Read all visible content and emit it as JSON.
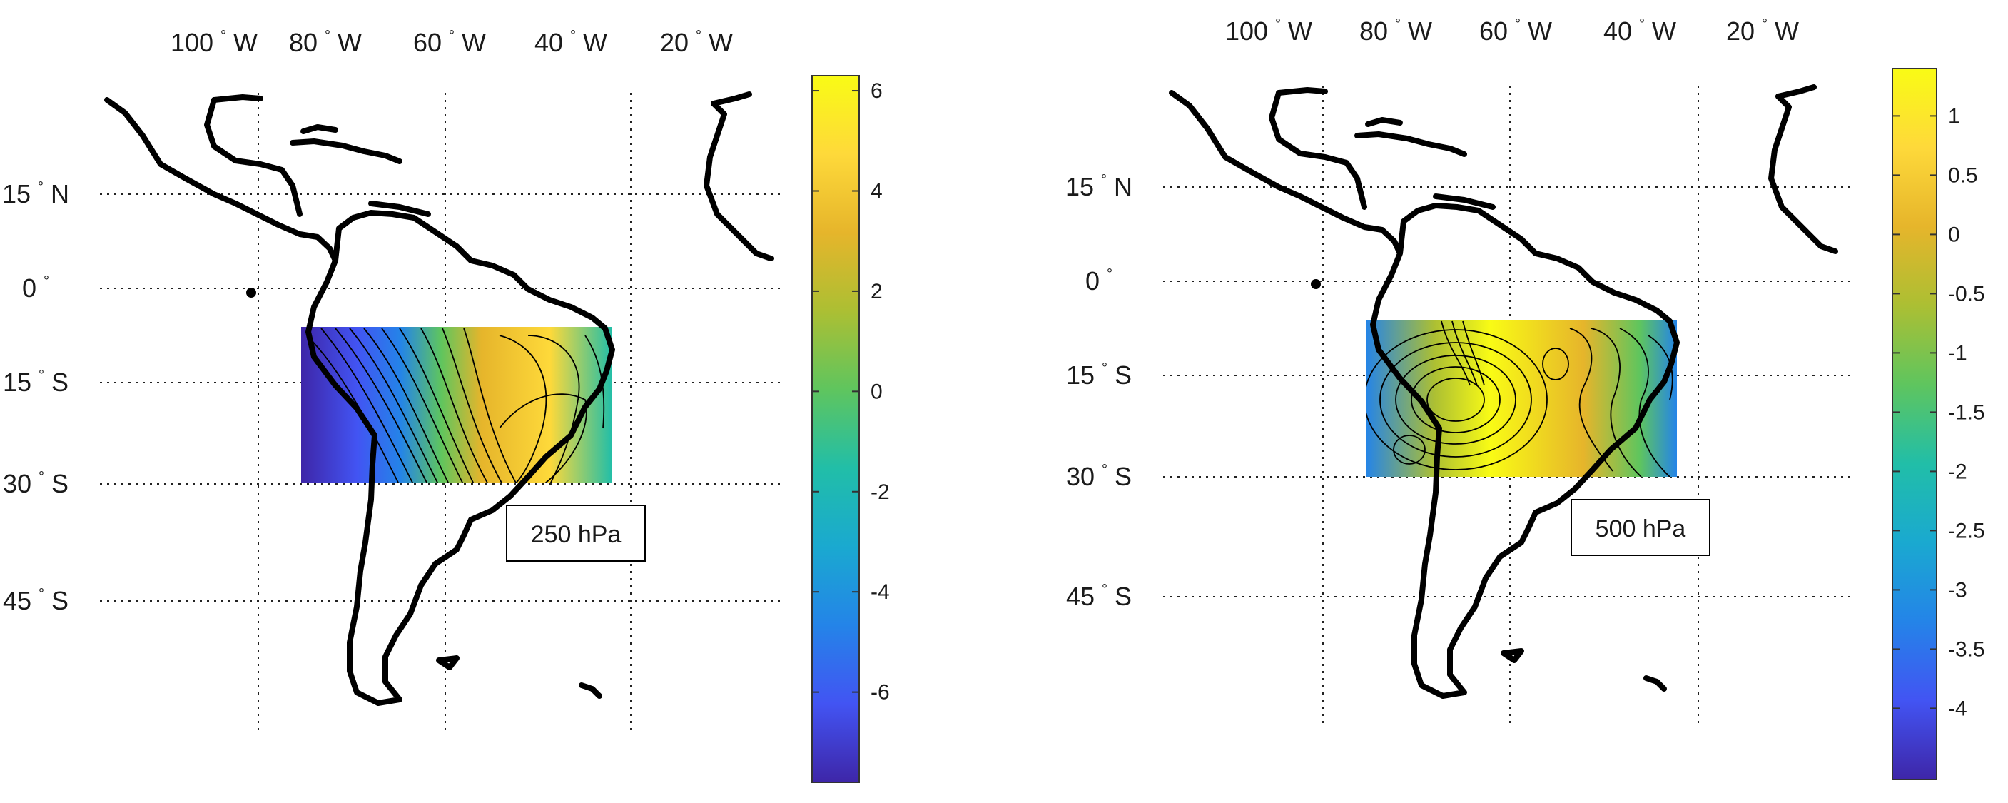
{
  "panels": [
    {
      "id": "left",
      "label": "250 hPa",
      "lon_ticks": [
        "100",
        "80",
        "60",
        "40",
        "20"
      ],
      "lon_hemi": "W",
      "lat_ticks": [
        {
          "value": "15",
          "hemi": "N"
        },
        {
          "value": "0",
          "hemi": ""
        },
        {
          "value": "15",
          "hemi": "S"
        },
        {
          "value": "30",
          "hemi": "S"
        },
        {
          "value": "45",
          "hemi": "S"
        }
      ],
      "colorbar": {
        "min": -7.8,
        "max": 6.3,
        "ticks": [
          "6",
          "4",
          "2",
          "0",
          "-2",
          "-4",
          "-6"
        ],
        "tick_values": [
          6,
          4,
          2,
          0,
          -2,
          -4,
          -6
        ]
      }
    },
    {
      "id": "right",
      "label": "500 hPa",
      "lon_ticks": [
        "100",
        "80",
        "60",
        "40",
        "20"
      ],
      "lon_hemi": "W",
      "lat_ticks": [
        {
          "value": "15",
          "hemi": "N"
        },
        {
          "value": "0",
          "hemi": ""
        },
        {
          "value": "15",
          "hemi": "S"
        },
        {
          "value": "30",
          "hemi": "S"
        },
        {
          "value": "45",
          "hemi": "S"
        }
      ],
      "colorbar": {
        "min": -4.6,
        "max": 1.4,
        "ticks": [
          "1",
          "0.5",
          "0",
          "-0.5",
          "-1",
          "-1.5",
          "-2",
          "-2.5",
          "-3",
          "-3.5",
          "-4"
        ],
        "tick_values": [
          1,
          0.5,
          0,
          -0.5,
          -1,
          -1.5,
          -2,
          -2.5,
          -3,
          -3.5,
          -4
        ]
      }
    }
  ],
  "colors": {
    "parula": [
      "#3e26a8",
      "#4254f3",
      "#2484e8",
      "#1aa9d0",
      "#21bea8",
      "#5fc55e",
      "#acbf33",
      "#e6b52b",
      "#fed93a",
      "#f9fb15"
    ],
    "coast": "#000000",
    "grid": "#222222"
  }
}
